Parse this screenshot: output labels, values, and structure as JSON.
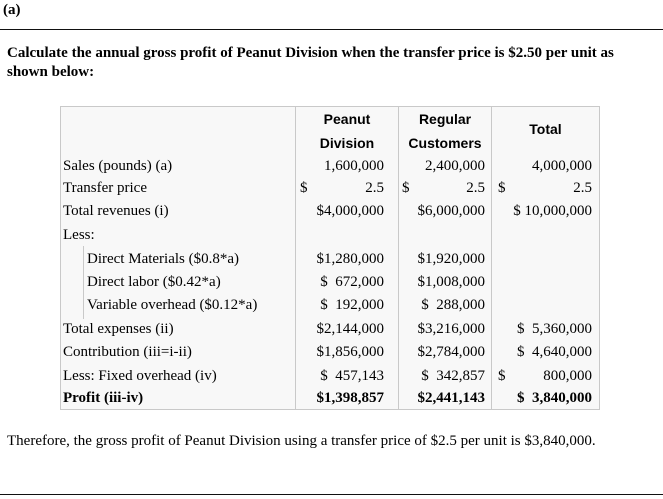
{
  "part_label": "(a)",
  "intro": "Calculate the annual gross profit of Peanut Division when the transfer price is $2.50 per unit as shown below:",
  "table": {
    "headers": {
      "peanut_1": "Peanut",
      "peanut_2": "Division",
      "regular_1": "Regular",
      "regular_2": "Customers",
      "total": "Total"
    },
    "rows": [
      {
        "label": "Sales (pounds) (a)",
        "p_sym": "",
        "p": "1,600,000",
        "r_sym": "",
        "r": "2,400,000",
        "t_sym": "",
        "t": "4,000,000"
      },
      {
        "label": "Transfer price",
        "p_sym": "$",
        "p": "2.5",
        "r_sym": "$",
        "r": "2.5",
        "t_sym": "$",
        "t": "2.5"
      },
      {
        "label": "Total revenues (i)",
        "p_sym": "",
        "p": "$4,000,000",
        "r_sym": "",
        "r": "$6,000,000",
        "t_sym": "",
        "t": "$ 10,000,000"
      },
      {
        "label": "Less:",
        "p_sym": "",
        "p": "",
        "r_sym": "",
        "r": "",
        "t_sym": "",
        "t": ""
      },
      {
        "label": "Direct Materials ($0.8*a)",
        "p_sym": "",
        "p": "$1,280,000",
        "r_sym": "",
        "r": "$1,920,000",
        "t_sym": "",
        "t": ""
      },
      {
        "label": "Direct labor ($0.42*a)",
        "p_sym": "",
        "p": "$  672,000",
        "r_sym": "",
        "r": "$1,008,000",
        "t_sym": "",
        "t": ""
      },
      {
        "label": "Variable overhead ($0.12*a)",
        "p_sym": "",
        "p": "$  192,000",
        "r_sym": "",
        "r": "$  288,000",
        "t_sym": "",
        "t": ""
      },
      {
        "label": "Total expenses (ii)",
        "p_sym": "",
        "p": "$2,144,000",
        "r_sym": "",
        "r": "$3,216,000",
        "t_sym": "",
        "t": "$  5,360,000"
      },
      {
        "label": "Contribution (iii=i-ii)",
        "p_sym": "",
        "p": "$1,856,000",
        "r_sym": "",
        "r": "$2,784,000",
        "t_sym": "",
        "t": "$  4,640,000"
      },
      {
        "label": "Less: Fixed overhead (iv)",
        "p_sym": "",
        "p": "$  457,143",
        "r_sym": "",
        "r": "$  342,857",
        "t_sym": "$",
        "t": "800,000"
      },
      {
        "label": "Profit (iii-iv)",
        "p_sym": "",
        "p": "$1,398,857",
        "r_sym": "",
        "r": "$2,441,143",
        "t_sym": "",
        "t": "$  3,840,000"
      }
    ]
  },
  "conclusion": "Therefore, the gross profit of Peanut Division using a transfer price of $2.5 per unit is $3,840,000."
}
